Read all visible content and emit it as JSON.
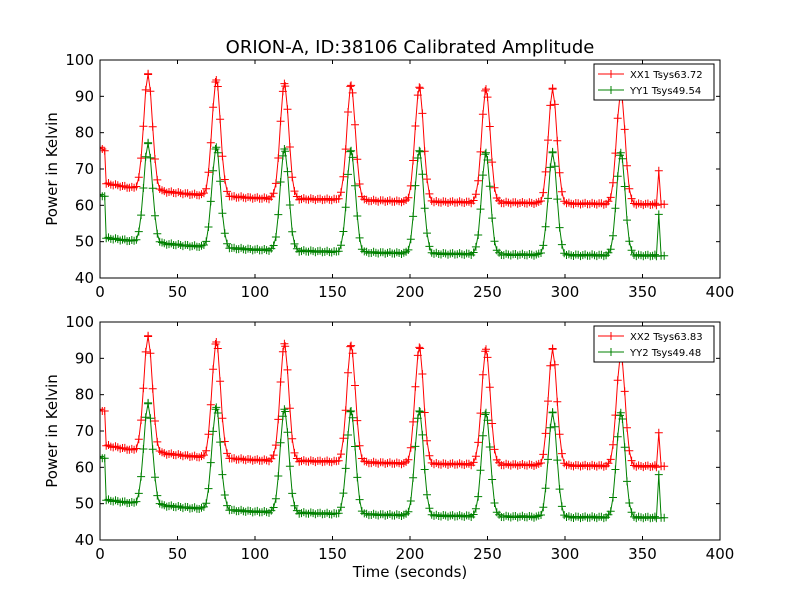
{
  "figure": {
    "title": "ORION-A, ID:38106 Calibrated Amplitude"
  },
  "chart_data": [
    {
      "type": "line",
      "title": "ORION-A, ID:38106 Calibrated Amplitude",
      "xlabel": "",
      "ylabel": "Power in Kelvin",
      "xlim": [
        0,
        400
      ],
      "ylim": [
        40,
        100
      ],
      "xticks": [
        "0",
        "50",
        "100",
        "150",
        "200",
        "250",
        "300",
        "350",
        "400"
      ],
      "yticks": [
        "40",
        "50",
        "60",
        "70",
        "80",
        "90",
        "100"
      ],
      "grid": false,
      "legend_position": "top-right",
      "sample_step_seconds": 1.5,
      "marker": "+",
      "series": [
        {
          "name": "XX1 Tsys63.72",
          "color": "#ff0000",
          "shape": {
            "start": [
              [
                0,
                76
              ],
              [
                1.5,
                75.5
              ],
              [
                3,
                75
              ]
            ],
            "drop_at": 3.5,
            "baseline_points": [
              [
                4,
                66
              ],
              [
                25,
                64.5
              ],
              [
                60,
                63
              ],
              [
                100,
                62
              ],
              [
                150,
                61.6
              ],
              [
                200,
                61
              ],
              [
                250,
                60.8
              ],
              [
                300,
                60.5
              ],
              [
                355,
                60.3
              ]
            ],
            "peaks": [
              [
                31,
                96
              ],
              [
                75,
                94.5
              ],
              [
                119,
                93.5
              ],
              [
                162,
                93
              ],
              [
                206,
                92.5
              ],
              [
                249,
                92
              ],
              [
                292,
                92
              ],
              [
                336,
                91
              ]
            ],
            "peak_half_width": 3.5,
            "spike": [
              [
                359,
                60
              ],
              [
                360.5,
                69.5
              ],
              [
                362,
                60.3
              ]
            ],
            "end": [
              [
                364,
                60.3
              ]
            ],
            "x_end": 364
          }
        },
        {
          "name": "YY1 Tsys49.54",
          "color": "#008000",
          "shape": {
            "start": [
              [
                0,
                63
              ],
              [
                1.5,
                62.5
              ],
              [
                3,
                62.5
              ]
            ],
            "drop_at": 3.5,
            "baseline_points": [
              [
                4,
                51
              ],
              [
                25,
                50
              ],
              [
                60,
                48.8
              ],
              [
                100,
                47.8
              ],
              [
                150,
                47.2
              ],
              [
                200,
                46.8
              ],
              [
                250,
                46.5
              ],
              [
                300,
                46.3
              ],
              [
                355,
                46.2
              ]
            ],
            "peaks": [
              [
                31,
                77
              ],
              [
                75,
                76
              ],
              [
                119,
                75.5
              ],
              [
                162,
                75
              ],
              [
                206,
                75
              ],
              [
                249,
                74.5
              ],
              [
                292,
                74.5
              ],
              [
                336,
                74.5
              ]
            ],
            "peak_half_width": 3.5,
            "spike": [
              [
                359,
                46
              ],
              [
                360.5,
                57.5
              ],
              [
                362,
                46.1
              ]
            ],
            "end": [
              [
                364,
                46.1
              ]
            ],
            "x_end": 364
          }
        }
      ]
    },
    {
      "type": "line",
      "title": "",
      "xlabel": "Time (seconds)",
      "ylabel": "Power in Kelvin",
      "xlim": [
        0,
        400
      ],
      "ylim": [
        40,
        100
      ],
      "xticks": [
        "0",
        "50",
        "100",
        "150",
        "200",
        "250",
        "300",
        "350",
        "400"
      ],
      "yticks": [
        "40",
        "50",
        "60",
        "70",
        "80",
        "90",
        "100"
      ],
      "grid": false,
      "legend_position": "top-right",
      "sample_step_seconds": 1.5,
      "marker": "+",
      "series": [
        {
          "name": "XX2 Tsys63.83",
          "color": "#ff0000",
          "shape": {
            "start": [
              [
                0,
                76
              ],
              [
                1.5,
                75.5
              ],
              [
                3,
                75.5
              ]
            ],
            "drop_at": 3.5,
            "baseline_points": [
              [
                4,
                66
              ],
              [
                25,
                64.5
              ],
              [
                60,
                63
              ],
              [
                100,
                62
              ],
              [
                150,
                61.6
              ],
              [
                200,
                61
              ],
              [
                250,
                60.8
              ],
              [
                300,
                60.5
              ],
              [
                355,
                60.3
              ]
            ],
            "peaks": [
              [
                31,
                96
              ],
              [
                75,
                94.5
              ],
              [
                119,
                94
              ],
              [
                162,
                93.5
              ],
              [
                206,
                93
              ],
              [
                249,
                92.5
              ],
              [
                292,
                92.5
              ],
              [
                336,
                91
              ]
            ],
            "peak_half_width": 3.5,
            "spike": [
              [
                359,
                60
              ],
              [
                360.5,
                69.5
              ],
              [
                362,
                60.3
              ]
            ],
            "end": [
              [
                364,
                60.3
              ]
            ],
            "x_end": 364
          }
        },
        {
          "name": "YY2 Tsys49.48",
          "color": "#008000",
          "shape": {
            "start": [
              [
                0,
                63
              ],
              [
                1.5,
                62.5
              ],
              [
                3,
                62.5
              ]
            ],
            "drop_at": 3.5,
            "baseline_points": [
              [
                4,
                51
              ],
              [
                25,
                50
              ],
              [
                60,
                48.8
              ],
              [
                100,
                47.8
              ],
              [
                150,
                47.2
              ],
              [
                200,
                46.8
              ],
              [
                250,
                46.5
              ],
              [
                300,
                46.3
              ],
              [
                355,
                46.2
              ]
            ],
            "peaks": [
              [
                31,
                77.5
              ],
              [
                75,
                76.5
              ],
              [
                119,
                76
              ],
              [
                162,
                75.5
              ],
              [
                206,
                75.5
              ],
              [
                249,
                75
              ],
              [
                292,
                75
              ],
              [
                336,
                75
              ]
            ],
            "peak_half_width": 3.5,
            "spike": [
              [
                359,
                46
              ],
              [
                360.5,
                58
              ],
              [
                362,
                46.1
              ]
            ],
            "end": [
              [
                364,
                46.1
              ]
            ],
            "x_end": 364
          }
        }
      ]
    }
  ]
}
